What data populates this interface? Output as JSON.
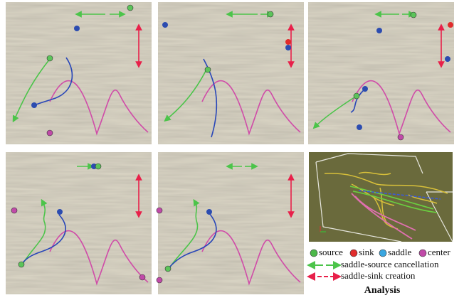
{
  "legend": {
    "source": "source",
    "sink": "sink",
    "saddle": "saddle",
    "center": "center",
    "cancellation": "saddle-source cancellation",
    "creation": "saddle-sink creation"
  },
  "caption": "Analysis"
}
